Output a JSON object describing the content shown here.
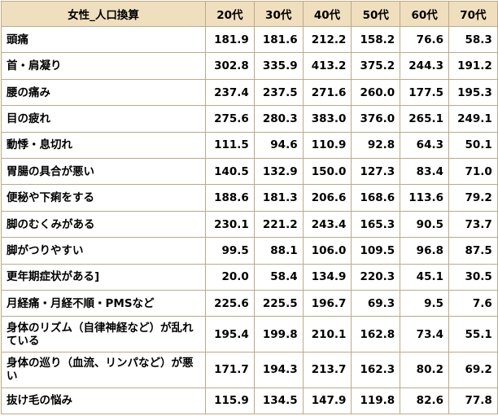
{
  "header": {
    "label": "女性_人口換算",
    "columns": [
      "20代",
      "30代",
      "40代",
      "50代",
      "60代",
      "70代"
    ]
  },
  "rows": [
    {
      "label": "頭痛",
      "values": [
        "181.9",
        "181.6",
        "212.2",
        "158.2",
        "76.6",
        "58.3"
      ]
    },
    {
      "label": "首・肩凝り",
      "values": [
        "302.8",
        "335.9",
        "413.2",
        "375.2",
        "244.3",
        "191.2"
      ]
    },
    {
      "label": "腰の痛み",
      "values": [
        "237.4",
        "237.5",
        "271.6",
        "260.0",
        "177.5",
        "195.3"
      ]
    },
    {
      "label": "目の疲れ",
      "values": [
        "275.6",
        "280.3",
        "383.0",
        "376.0",
        "265.1",
        "249.1"
      ]
    },
    {
      "label": "動悸・息切れ",
      "values": [
        "111.5",
        "94.6",
        "110.9",
        "92.8",
        "64.3",
        "50.1"
      ]
    },
    {
      "label": "胃腸の具合が悪い",
      "values": [
        "140.5",
        "132.9",
        "150.0",
        "127.3",
        "83.4",
        "71.0"
      ]
    },
    {
      "label": "便秘や下痢をする",
      "values": [
        "188.6",
        "181.3",
        "206.6",
        "168.6",
        "113.6",
        "79.2"
      ]
    },
    {
      "label": "脚のむくみがある",
      "values": [
        "230.1",
        "221.2",
        "243.4",
        "165.3",
        "90.5",
        "73.7"
      ]
    },
    {
      "label": "脚がつりやすい",
      "values": [
        "99.5",
        "88.1",
        "106.0",
        "109.5",
        "96.8",
        "87.5"
      ]
    },
    {
      "label": "更年期症状がある]",
      "values": [
        "20.0",
        "58.4",
        "134.9",
        "220.3",
        "45.1",
        "30.5"
      ]
    },
    {
      "label": "月経痛・月経不順・PMSなど",
      "values": [
        "225.6",
        "225.5",
        "196.7",
        "69.3",
        "9.5",
        "7.6"
      ]
    },
    {
      "label": "身体のリズム（自律神経など）が乱れている",
      "values": [
        "195.4",
        "199.8",
        "210.1",
        "162.8",
        "73.4",
        "55.1"
      ]
    },
    {
      "label": "身体の巡り（血流、リンパなど）が悪い",
      "values": [
        "171.7",
        "194.3",
        "213.7",
        "162.3",
        "80.2",
        "69.2"
      ]
    },
    {
      "label": "抜け毛の悩み",
      "values": [
        "115.9",
        "134.5",
        "147.9",
        "119.8",
        "82.6",
        "77.8"
      ]
    }
  ]
}
